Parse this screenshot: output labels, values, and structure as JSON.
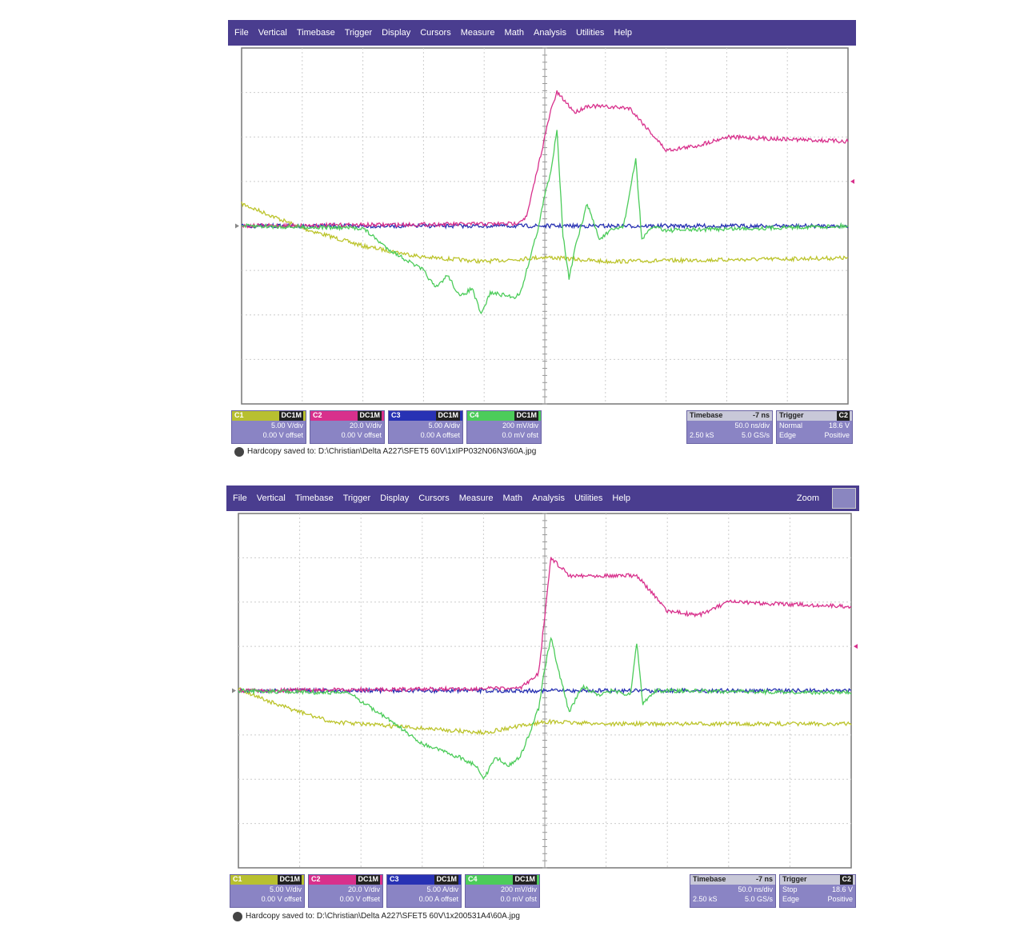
{
  "scopes": [
    {
      "menu": [
        "File",
        "Vertical",
        "Timebase",
        "Trigger",
        "Display",
        "Cursors",
        "Measure",
        "Math",
        "Analysis",
        "Utilities",
        "Help"
      ],
      "channels": [
        {
          "label": "C1",
          "coupling": "DC1M",
          "scale": "5.00 V/div",
          "offset": "0.00 V offset"
        },
        {
          "label": "C2",
          "coupling": "DC1M",
          "scale": "20.0 V/div",
          "offset": "0.00 V offset"
        },
        {
          "label": "C3",
          "coupling": "DC1M",
          "scale": "5.00 A/div",
          "offset": "0.00 A offset"
        },
        {
          "label": "C4",
          "coupling": "DC1M",
          "scale": "200 mV/div",
          "offset": "0.0 mV ofst"
        }
      ],
      "timebase": {
        "label": "Timebase",
        "delay": "-7 ns",
        "scale": "50.0 ns/div",
        "samples": "2.50 kS",
        "rate": "5.0 GS/s"
      },
      "trigger": {
        "label": "Trigger",
        "source": "C2",
        "mode": "Normal",
        "level": "18.6 V",
        "type": "Edge",
        "slope": "Positive"
      },
      "hardcopy": "Hardcopy saved to: D:\\Christian\\Delta A227\\SFET5 60V\\1xIPP032N06N3\\60A.jpg"
    },
    {
      "menu": [
        "File",
        "Vertical",
        "Timebase",
        "Trigger",
        "Display",
        "Cursors",
        "Measure",
        "Math",
        "Analysis",
        "Utilities",
        "Help"
      ],
      "zoom": "Zoom",
      "channels": [
        {
          "label": "C1",
          "coupling": "DC1M",
          "scale": "5.00 V/div",
          "offset": "0.00 V offset"
        },
        {
          "label": "C2",
          "coupling": "DC1M",
          "scale": "20.0 V/div",
          "offset": "0.00 V offset"
        },
        {
          "label": "C3",
          "coupling": "DC1M",
          "scale": "5.00 A/div",
          "offset": "0.00 A offset"
        },
        {
          "label": "C4",
          "coupling": "DC1M",
          "scale": "200 mV/div",
          "offset": "0.0 mV ofst"
        }
      ],
      "timebase": {
        "label": "Timebase",
        "delay": "-7 ns",
        "scale": "50.0 ns/div",
        "samples": "2.50 kS",
        "rate": "5.0 GS/s"
      },
      "trigger": {
        "label": "Trigger",
        "source": "C2",
        "mode": "Stop",
        "level": "18.6 V",
        "type": "Edge",
        "slope": "Positive"
      },
      "hardcopy": "Hardcopy saved to: D:\\Christian\\Delta A227\\SFET5 60V\\1x200531A4\\60A.jpg"
    }
  ]
}
